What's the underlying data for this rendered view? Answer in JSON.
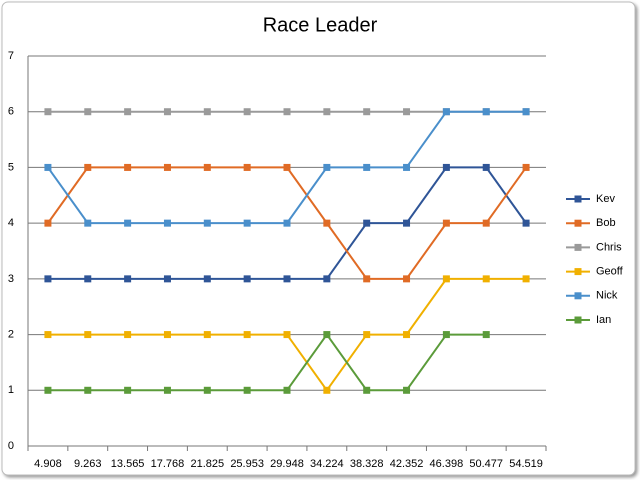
{
  "chart_data": {
    "type": "line",
    "title": "Race Leader",
    "categories": [
      "4.908",
      "9.263",
      "13.565",
      "17.768",
      "21.825",
      "25.953",
      "29.948",
      "34.224",
      "38.328",
      "42.352",
      "46.398",
      "50.477",
      "54.519"
    ],
    "series": [
      {
        "name": "Kev",
        "color": "#2f5597",
        "values": [
          3,
          3,
          3,
          3,
          3,
          3,
          3,
          3,
          4,
          4,
          5,
          5,
          4
        ]
      },
      {
        "name": "Bob",
        "color": "#e06b25",
        "values": [
          4,
          5,
          5,
          5,
          5,
          5,
          5,
          4,
          3,
          3,
          4,
          4,
          5
        ]
      },
      {
        "name": "Chris",
        "color": "#9a9a9a",
        "values": [
          6,
          6,
          6,
          6,
          6,
          6,
          6,
          6,
          6,
          6,
          6,
          6,
          6
        ]
      },
      {
        "name": "Geoff",
        "color": "#f0b000",
        "values": [
          2,
          2,
          2,
          2,
          2,
          2,
          2,
          1,
          2,
          2,
          3,
          3,
          3
        ]
      },
      {
        "name": "Nick",
        "color": "#4a8fcb",
        "values": [
          5,
          4,
          4,
          4,
          4,
          4,
          4,
          5,
          5,
          5,
          6,
          6,
          6
        ]
      },
      {
        "name": "Ian",
        "color": "#5b9b3a",
        "values": [
          1,
          1,
          1,
          1,
          1,
          1,
          1,
          2,
          1,
          1,
          2,
          2,
          null
        ]
      }
    ],
    "ylim": [
      0,
      7
    ],
    "yticks": [
      0,
      1,
      2,
      3,
      4,
      5,
      6,
      7
    ],
    "grid": true,
    "legend": "right"
  }
}
